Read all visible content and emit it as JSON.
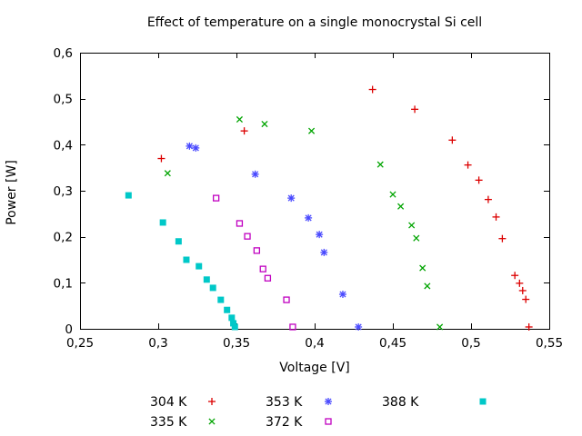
{
  "chart_data": {
    "type": "scatter",
    "title": "Effect of temperature on a single monocrystal Si cell",
    "xlabel": "Voltage [V]",
    "ylabel": "Power [W]",
    "xlim": [
      0.25,
      0.55
    ],
    "ylim": [
      0,
      0.6
    ],
    "grid": false,
    "decimal_comma": true,
    "frame_color": "#000000",
    "legend_position": "bottom-outside",
    "xticks": {
      "values": [
        0.25,
        0.3,
        0.35,
        0.4,
        0.45,
        0.5,
        0.55
      ],
      "labels": [
        "0,25",
        "0,3",
        "0,35",
        "0,4",
        "0,45",
        "0,5",
        "0,55"
      ]
    },
    "yticks": {
      "values": [
        0,
        0.1,
        0.2,
        0.3,
        0.4,
        0.5,
        0.6
      ],
      "labels": [
        "0",
        "0,1",
        "0,2",
        "0,3",
        "0,4",
        "0,5",
        "0,6"
      ]
    },
    "series": [
      {
        "name": "304 K",
        "marker": "plus",
        "color": "#dc0000",
        "points": [
          [
            0.302,
            0.37
          ],
          [
            0.355,
            0.43
          ],
          [
            0.437,
            0.52
          ],
          [
            0.464,
            0.477
          ],
          [
            0.488,
            0.41
          ],
          [
            0.498,
            0.356
          ],
          [
            0.505,
            0.323
          ],
          [
            0.511,
            0.281
          ],
          [
            0.516,
            0.243
          ],
          [
            0.52,
            0.196
          ],
          [
            0.528,
            0.116
          ],
          [
            0.531,
            0.099
          ],
          [
            0.533,
            0.083
          ],
          [
            0.535,
            0.064
          ],
          [
            0.537,
            0.004
          ]
        ]
      },
      {
        "name": "335 K",
        "marker": "cross",
        "color": "#00a400",
        "points": [
          [
            0.306,
            0.338
          ],
          [
            0.352,
            0.455
          ],
          [
            0.368,
            0.445
          ],
          [
            0.398,
            0.43
          ],
          [
            0.442,
            0.357
          ],
          [
            0.45,
            0.292
          ],
          [
            0.455,
            0.266
          ],
          [
            0.462,
            0.225
          ],
          [
            0.465,
            0.197
          ],
          [
            0.469,
            0.132
          ],
          [
            0.472,
            0.093
          ],
          [
            0.48,
            0.004
          ]
        ]
      },
      {
        "name": "353 K",
        "marker": "asterisk",
        "color": "#4949ff",
        "points": [
          [
            0.32,
            0.397
          ],
          [
            0.324,
            0.393
          ],
          [
            0.362,
            0.336
          ],
          [
            0.385,
            0.284
          ],
          [
            0.396,
            0.241
          ],
          [
            0.403,
            0.205
          ],
          [
            0.406,
            0.166
          ],
          [
            0.418,
            0.075
          ],
          [
            0.428,
            0.004
          ]
        ]
      },
      {
        "name": "372 K",
        "marker": "open-square",
        "color": "#c000c0",
        "points": [
          [
            0.337,
            0.284
          ],
          [
            0.352,
            0.229
          ],
          [
            0.357,
            0.201
          ],
          [
            0.363,
            0.17
          ],
          [
            0.367,
            0.13
          ],
          [
            0.37,
            0.11
          ],
          [
            0.382,
            0.063
          ],
          [
            0.386,
            0.004
          ]
        ]
      },
      {
        "name": "388 K",
        "marker": "filled-square",
        "color": "#00c8c8",
        "points": [
          [
            0.281,
            0.29
          ],
          [
            0.303,
            0.231
          ],
          [
            0.313,
            0.19
          ],
          [
            0.318,
            0.15
          ],
          [
            0.326,
            0.136
          ],
          [
            0.331,
            0.107
          ],
          [
            0.335,
            0.089
          ],
          [
            0.34,
            0.063
          ],
          [
            0.344,
            0.041
          ],
          [
            0.347,
            0.024
          ],
          [
            0.348,
            0.012
          ],
          [
            0.349,
            0.004
          ]
        ]
      }
    ],
    "legend_rows": [
      [
        "304 K",
        "353 K",
        "388 K"
      ],
      [
        "335 K",
        "372 K"
      ]
    ]
  }
}
